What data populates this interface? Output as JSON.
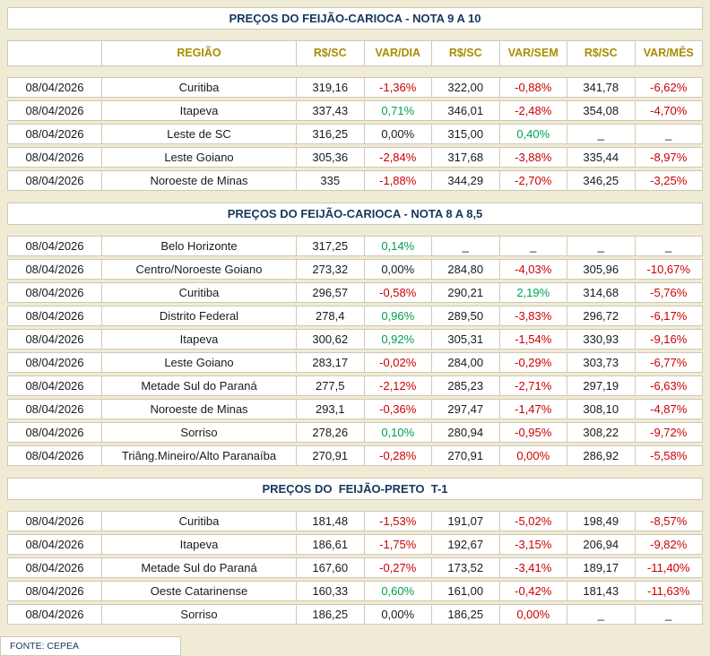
{
  "page": {
    "footer": "FONTE: CEPEA"
  },
  "colors": {
    "background": "#F0EBD5",
    "border": "#CFC9B4",
    "title_text": "#17375E",
    "header_text": "#AB8B00",
    "negative": "#CC0000",
    "positive": "#00A14B",
    "neutral": "#1A1A1A"
  },
  "table": {
    "columns": [
      "REGIÃO",
      "R$/SC",
      "VAR/DIA",
      "R$/SC",
      "VAR/SEM",
      "R$/SC",
      "VAR/MÊS"
    ]
  },
  "sections": [
    {
      "title": "PREÇOS DO FEIJÃO-CARIOCA - NOTA 9 A 10",
      "show_header": true,
      "rows": [
        {
          "date": "08/04/2026",
          "region": "Curitiba",
          "values": [
            [
              "319,16",
              "num"
            ],
            [
              "-1,36%",
              "neg"
            ],
            [
              "322,00",
              "num"
            ],
            [
              "-0,88%",
              "neg"
            ],
            [
              "341,78",
              "num"
            ],
            [
              "-6,62%",
              "neg"
            ]
          ]
        },
        {
          "date": "08/04/2026",
          "region": "Itapeva",
          "values": [
            [
              "337,43",
              "num"
            ],
            [
              "0,71%",
              "pos"
            ],
            [
              "346,01",
              "num"
            ],
            [
              "-2,48%",
              "neg"
            ],
            [
              "354,08",
              "num"
            ],
            [
              "-4,70%",
              "neg"
            ]
          ]
        },
        {
          "date": "08/04/2026",
          "region": "Leste de SC",
          "values": [
            [
              "316,25",
              "num"
            ],
            [
              "0,00%",
              "zero"
            ],
            [
              "315,00",
              "num"
            ],
            [
              "0,40%",
              "pos"
            ],
            [
              "_",
              "nil"
            ],
            [
              "_",
              "nil"
            ]
          ]
        },
        {
          "date": "08/04/2026",
          "region": "Leste Goiano",
          "values": [
            [
              "305,36",
              "num"
            ],
            [
              "-2,84%",
              "neg"
            ],
            [
              "317,68",
              "num"
            ],
            [
              "-3,88%",
              "neg"
            ],
            [
              "335,44",
              "num"
            ],
            [
              "-8,97%",
              "neg"
            ]
          ]
        },
        {
          "date": "08/04/2026",
          "region": "Noroeste de Minas",
          "values": [
            [
              "335",
              "num"
            ],
            [
              "-1,88%",
              "neg"
            ],
            [
              "344,29",
              "num"
            ],
            [
              "-2,70%",
              "neg"
            ],
            [
              "346,25",
              "num"
            ],
            [
              "-3,25%",
              "neg"
            ]
          ]
        }
      ]
    },
    {
      "title": "PREÇOS DO FEIJÃO-CARIOCA - NOTA 8 A 8,5",
      "show_header": false,
      "rows": [
        {
          "date": "08/04/2026",
          "region": "Belo Horizonte",
          "values": [
            [
              "317,25",
              "num"
            ],
            [
              "0,14%",
              "pos"
            ],
            [
              "_",
              "nil"
            ],
            [
              "_",
              "nil"
            ],
            [
              "_",
              "nil"
            ],
            [
              "_",
              "nil"
            ]
          ]
        },
        {
          "date": "08/04/2026",
          "region": "Centro/Noroeste Goiano",
          "values": [
            [
              "273,32",
              "num"
            ],
            [
              "0,00%",
              "zero"
            ],
            [
              "284,80",
              "num"
            ],
            [
              "-4,03%",
              "neg"
            ],
            [
              "305,96",
              "num"
            ],
            [
              "-10,67%",
              "neg"
            ]
          ]
        },
        {
          "date": "08/04/2026",
          "region": "Curitiba",
          "values": [
            [
              "296,57",
              "num"
            ],
            [
              "-0,58%",
              "neg"
            ],
            [
              "290,21",
              "num"
            ],
            [
              "2,19%",
              "pos"
            ],
            [
              "314,68",
              "num"
            ],
            [
              "-5,76%",
              "neg"
            ]
          ]
        },
        {
          "date": "08/04/2026",
          "region": "Distrito Federal",
          "values": [
            [
              "278,4",
              "num"
            ],
            [
              "0,96%",
              "pos"
            ],
            [
              "289,50",
              "num"
            ],
            [
              "-3,83%",
              "neg"
            ],
            [
              "296,72",
              "num"
            ],
            [
              "-6,17%",
              "neg"
            ]
          ]
        },
        {
          "date": "08/04/2026",
          "region": "Itapeva",
          "values": [
            [
              "300,62",
              "num"
            ],
            [
              "0,92%",
              "pos"
            ],
            [
              "305,31",
              "num"
            ],
            [
              "-1,54%",
              "neg"
            ],
            [
              "330,93",
              "num"
            ],
            [
              "-9,16%",
              "neg"
            ]
          ]
        },
        {
          "date": "08/04/2026",
          "region": "Leste Goiano",
          "values": [
            [
              "283,17",
              "num"
            ],
            [
              "-0,02%",
              "neg"
            ],
            [
              "284,00",
              "num"
            ],
            [
              "-0,29%",
              "neg"
            ],
            [
              "303,73",
              "num"
            ],
            [
              "-6,77%",
              "neg"
            ]
          ]
        },
        {
          "date": "08/04/2026",
          "region": "Metade Sul do Paraná",
          "values": [
            [
              "277,5",
              "num"
            ],
            [
              "-2,12%",
              "neg"
            ],
            [
              "285,23",
              "num"
            ],
            [
              "-2,71%",
              "neg"
            ],
            [
              "297,19",
              "num"
            ],
            [
              "-6,63%",
              "neg"
            ]
          ]
        },
        {
          "date": "08/04/2026",
          "region": "Noroeste de Minas",
          "values": [
            [
              "293,1",
              "num"
            ],
            [
              "-0,36%",
              "neg"
            ],
            [
              "297,47",
              "num"
            ],
            [
              "-1,47%",
              "neg"
            ],
            [
              "308,10",
              "num"
            ],
            [
              "-4,87%",
              "neg"
            ]
          ]
        },
        {
          "date": "08/04/2026",
          "region": "Sorriso",
          "values": [
            [
              "278,26",
              "num"
            ],
            [
              "0,10%",
              "pos"
            ],
            [
              "280,94",
              "num"
            ],
            [
              "-0,95%",
              "neg"
            ],
            [
              "308,22",
              "num"
            ],
            [
              "-9,72%",
              "neg"
            ]
          ]
        },
        {
          "date": "08/04/2026",
          "region": "Triâng.Mineiro/Alto Paranaíba",
          "values": [
            [
              "270,91",
              "num"
            ],
            [
              "-0,28%",
              "neg"
            ],
            [
              "270,91",
              "num"
            ],
            [
              "0,00%",
              "neg"
            ],
            [
              "286,92",
              "num"
            ],
            [
              "-5,58%",
              "neg"
            ]
          ]
        }
      ]
    },
    {
      "title": "PREÇOS DO  FEIJÃO-PRETO  T-1",
      "show_header": false,
      "rows": [
        {
          "date": "08/04/2026",
          "region": "Curitiba",
          "values": [
            [
              "181,48",
              "num"
            ],
            [
              "-1,53%",
              "neg"
            ],
            [
              "191,07",
              "num"
            ],
            [
              "-5,02%",
              "neg"
            ],
            [
              "198,49",
              "num"
            ],
            [
              "-8,57%",
              "neg"
            ]
          ]
        },
        {
          "date": "08/04/2026",
          "region": "Itapeva",
          "values": [
            [
              "186,61",
              "num"
            ],
            [
              "-1,75%",
              "neg"
            ],
            [
              "192,67",
              "num"
            ],
            [
              "-3,15%",
              "neg"
            ],
            [
              "206,94",
              "num"
            ],
            [
              "-9,82%",
              "neg"
            ]
          ]
        },
        {
          "date": "08/04/2026",
          "region": "Metade Sul do Paraná",
          "values": [
            [
              "167,60",
              "num"
            ],
            [
              "-0,27%",
              "neg"
            ],
            [
              "173,52",
              "num"
            ],
            [
              "-3,41%",
              "neg"
            ],
            [
              "189,17",
              "num"
            ],
            [
              "-11,40%",
              "neg"
            ]
          ]
        },
        {
          "date": "08/04/2026",
          "region": "Oeste Catarinense",
          "values": [
            [
              "160,33",
              "num"
            ],
            [
              "0,60%",
              "pos"
            ],
            [
              "161,00",
              "num"
            ],
            [
              "-0,42%",
              "neg"
            ],
            [
              "181,43",
              "num"
            ],
            [
              "-11,63%",
              "neg"
            ]
          ]
        },
        {
          "date": "08/04/2026",
          "region": "Sorriso",
          "values": [
            [
              "186,25",
              "num"
            ],
            [
              "0,00%",
              "zero"
            ],
            [
              "186,25",
              "num"
            ],
            [
              "0,00%",
              "neg"
            ],
            [
              "_",
              "nil"
            ],
            [
              "_",
              "nil"
            ]
          ]
        }
      ]
    }
  ]
}
